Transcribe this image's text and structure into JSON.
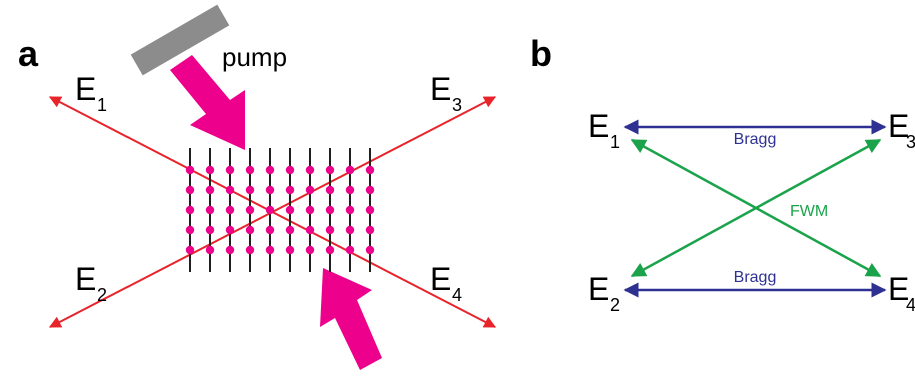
{
  "panels": {
    "a": {
      "label": "a",
      "pump_label": "pump",
      "fields": [
        {
          "main": "E",
          "sub": "1"
        },
        {
          "main": "E",
          "sub": "2"
        },
        {
          "main": "E",
          "sub": "3"
        },
        {
          "main": "E",
          "sub": "4"
        }
      ]
    },
    "b": {
      "label": "b",
      "fields": [
        {
          "main": "E",
          "sub": "1"
        },
        {
          "main": "E",
          "sub": "2"
        },
        {
          "main": "E",
          "sub": "3"
        },
        {
          "main": "E",
          "sub": "4"
        }
      ],
      "bragg_top": "Bragg",
      "bragg_bottom": "Bragg",
      "fwm": "FWM"
    }
  },
  "colors": {
    "beam": "#e8232a",
    "pump": "#ec008c",
    "atom": "#ec008c",
    "grating": "#231f20",
    "mirror": "#8c8c8c",
    "bragg": "#2e3192",
    "fwm": "#1aa34a"
  }
}
